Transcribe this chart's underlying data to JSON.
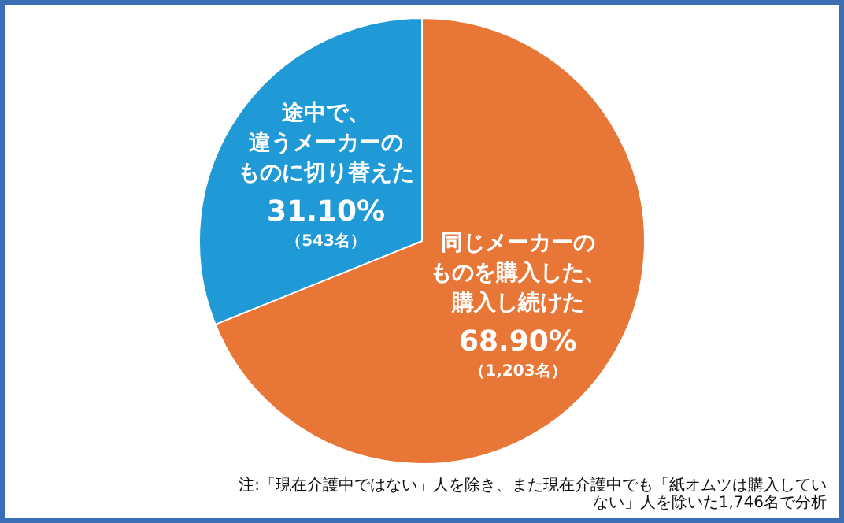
{
  "chart_data": {
    "type": "pie",
    "categories": [
      "同じメーカーのものを購入した、購入し続けた",
      "途中で、違うメーカーのものに切り替えた"
    ],
    "values": [
      68.9,
      31.1
    ],
    "colors": [
      "#e87636",
      "#1f9ad6"
    ],
    "value_labels": [
      "68.90%\n（1,203名）",
      "31.10%\n（543名）"
    ],
    "annotations": [
      "注:「現在介護中ではない」人を除き、また現在介護中でも「紙オムツは購入していない」人を除いた1,746名で分析"
    ]
  }
}
